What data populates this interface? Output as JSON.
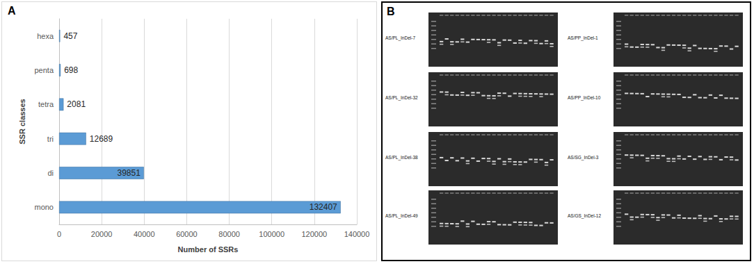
{
  "chart_data": {
    "type": "bar",
    "orientation": "horizontal",
    "categories": [
      "mono",
      "di",
      "tri",
      "tetra",
      "penta",
      "hexa"
    ],
    "values": [
      132407,
      39851,
      12689,
      2081,
      698,
      457
    ],
    "color": "#5b9bd5",
    "x_label": "Number of SSRs",
    "y_label": "SSR classes",
    "xlim": [
      0,
      140000
    ],
    "xticks": [
      0,
      20000,
      40000,
      60000,
      80000,
      100000,
      120000,
      140000
    ],
    "grid": true,
    "data_labels": true
  },
  "panel_a": {
    "label": "A"
  },
  "panel_b": {
    "label": "B",
    "gels": [
      "AS/PL_InDel-7",
      "AS/PP_InDel-1",
      "AS/PL_InDel-32",
      "AS/PP_InDel-10",
      "AS/PL_InDel-38",
      "AS/SG_InDel-3",
      "AS/PL_InDel-49",
      "AS/GS_InDel-12"
    ]
  }
}
